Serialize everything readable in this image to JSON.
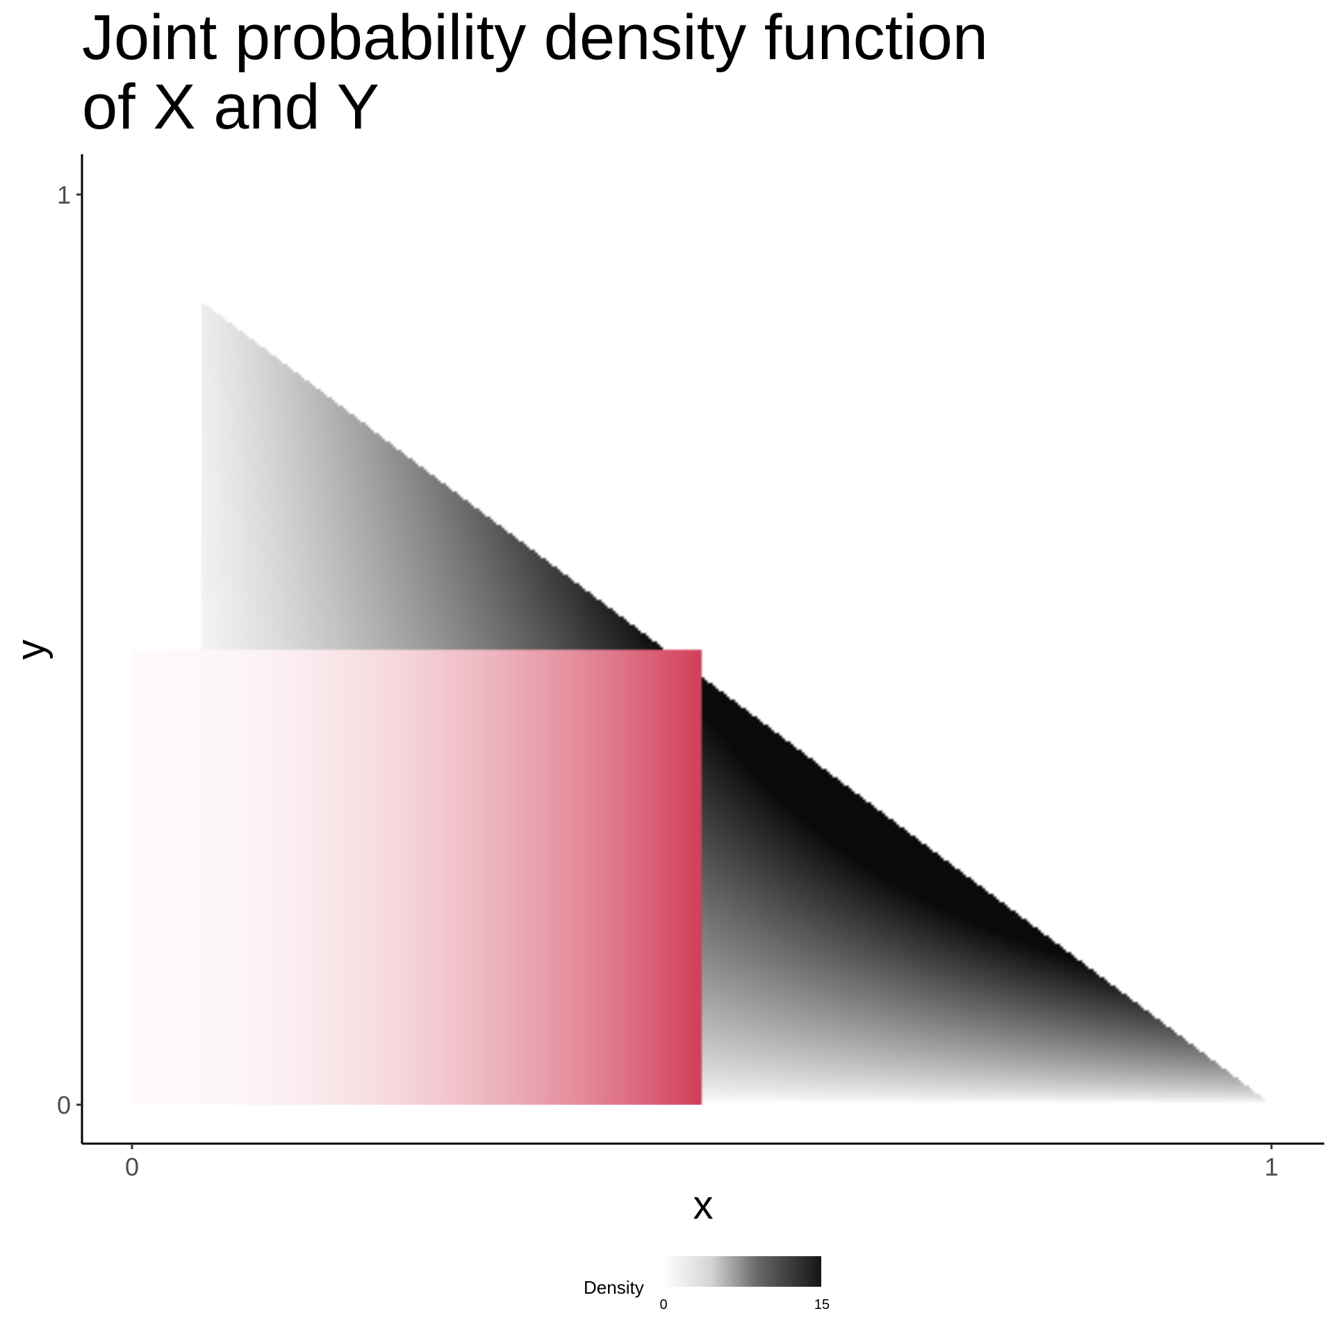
{
  "chart_data": {
    "type": "heatmap",
    "title": [
      "Joint probability density function",
      "of X and Y"
    ],
    "xlabel": "x",
    "ylabel": "y",
    "xlim": [
      0,
      1
    ],
    "ylim": [
      0,
      1
    ],
    "x_ticks": [
      "0",
      "1"
    ],
    "y_ticks": [
      "0",
      "1"
    ],
    "support": "triangle 0 ≤ y ≤ 0.94·(1 − x)",
    "density_formula": "f(x, y) ∝ x²·y, 0 ≤ x ≤ 1, 0 ≤ y ≤ 0.94·(1 − x)",
    "highlighted_region": {
      "x": [
        0,
        0.5
      ],
      "y": [
        0,
        0.5
      ],
      "color": "#d23a56"
    },
    "colors": {
      "density_low": "#ffffff",
      "density_high": "#000000",
      "highlight": "#d23a56"
    },
    "legend": {
      "title": "Density",
      "min_label": "0",
      "max_label": "15",
      "position": "bottom"
    },
    "grid": false
  }
}
